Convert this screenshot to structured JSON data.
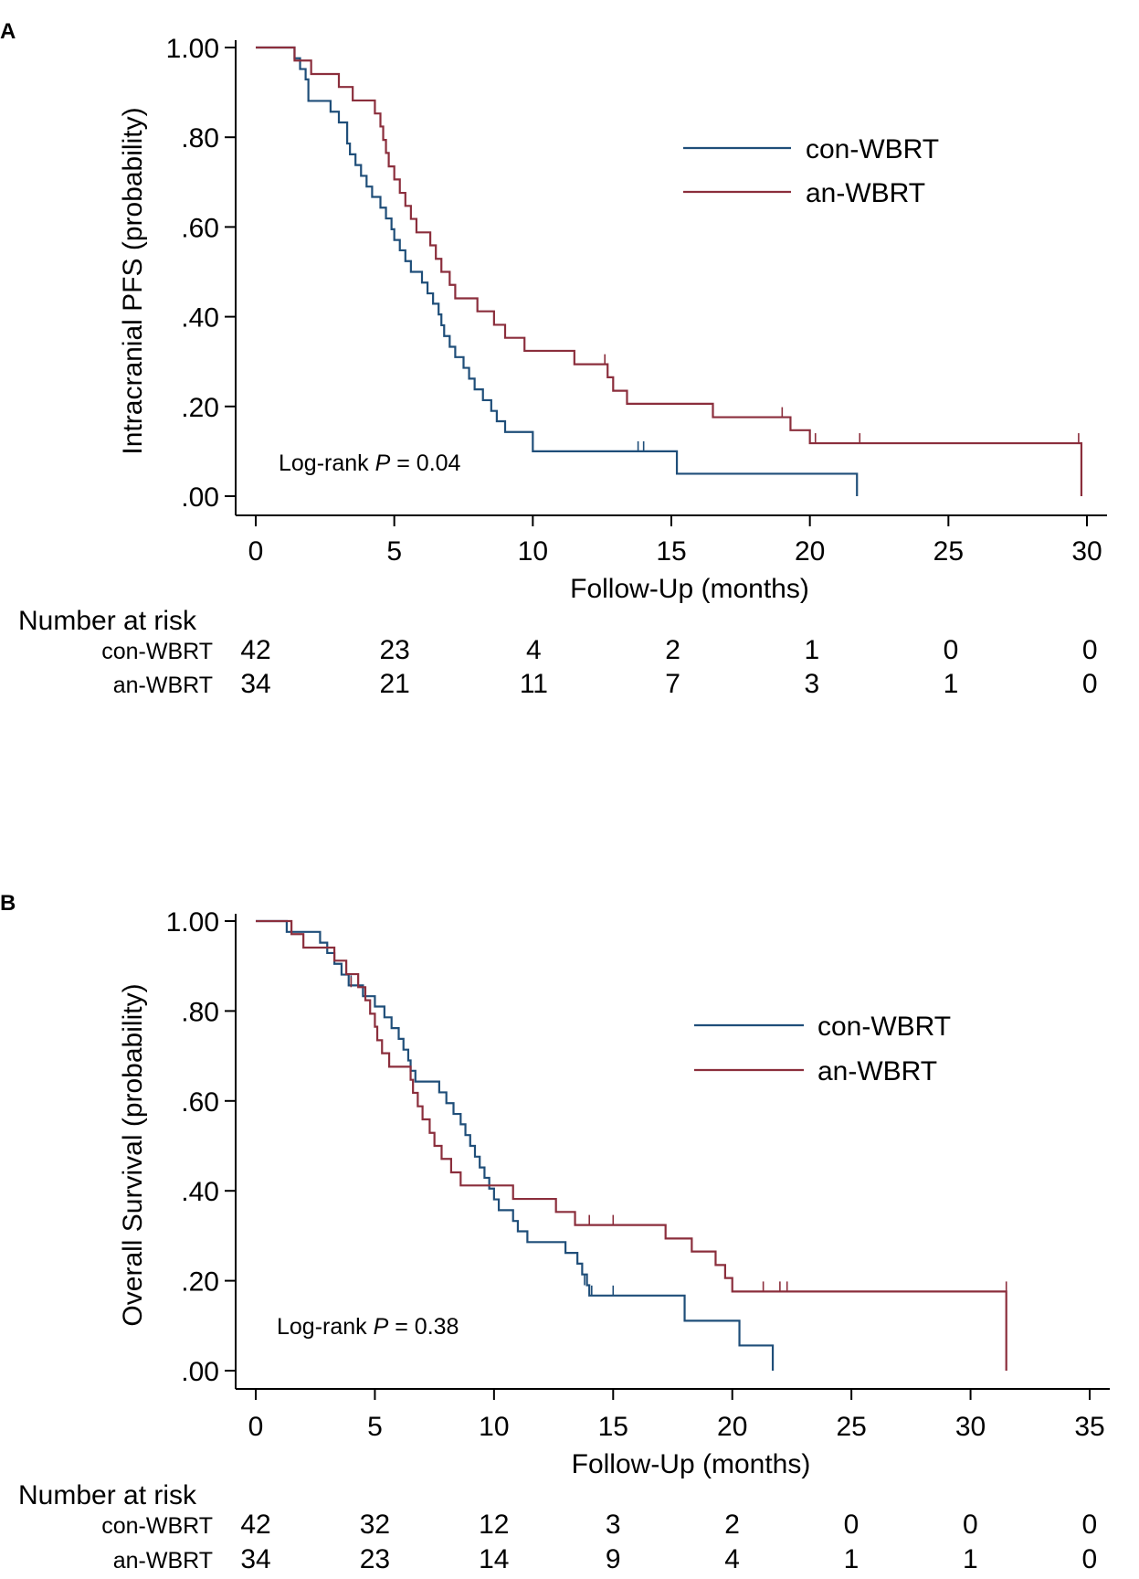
{
  "colors": {
    "con": "#1f4e79",
    "an": "#8b2e3c",
    "axis": "#000000"
  },
  "chart_data": [
    {
      "type": "line",
      "panel_label": "A",
      "title": "",
      "xlabel": "Follow-Up (months)",
      "ylabel": "Intracranial PFS (probability)",
      "xlim": [
        0,
        30
      ],
      "ylim": [
        0,
        1
      ],
      "x_ticks": [
        "0",
        "5",
        "10",
        "15",
        "20",
        "25",
        "30"
      ],
      "y_ticks": [
        ".00",
        ".20",
        ".40",
        ".60",
        ".80",
        "1.00"
      ],
      "legend": [
        "con-WBRT",
        "an-WBRT"
      ],
      "legend_position": "top-right",
      "annotation": {
        "prefix": "Log-rank ",
        "p_symbol": "P",
        "suffix": " = 0.04"
      },
      "series": [
        {
          "name": "con-WBRT",
          "color_key": "con",
          "steps": [
            [
              0,
              1.0
            ],
            [
              1.4,
              0.976
            ],
            [
              1.6,
              0.952
            ],
            [
              1.8,
              0.929
            ],
            [
              1.9,
              0.881
            ],
            [
              2.7,
              0.857
            ],
            [
              3.0,
              0.833
            ],
            [
              3.3,
              0.786
            ],
            [
              3.4,
              0.762
            ],
            [
              3.6,
              0.738
            ],
            [
              3.8,
              0.714
            ],
            [
              4.0,
              0.69
            ],
            [
              4.2,
              0.667
            ],
            [
              4.5,
              0.643
            ],
            [
              4.7,
              0.619
            ],
            [
              4.9,
              0.595
            ],
            [
              5.0,
              0.571
            ],
            [
              5.2,
              0.548
            ],
            [
              5.4,
              0.524
            ],
            [
              5.6,
              0.5
            ],
            [
              6.0,
              0.476
            ],
            [
              6.2,
              0.452
            ],
            [
              6.4,
              0.429
            ],
            [
              6.6,
              0.405
            ],
            [
              6.7,
              0.381
            ],
            [
              6.8,
              0.357
            ],
            [
              7.0,
              0.333
            ],
            [
              7.2,
              0.31
            ],
            [
              7.5,
              0.286
            ],
            [
              7.7,
              0.262
            ],
            [
              7.9,
              0.238
            ],
            [
              8.2,
              0.214
            ],
            [
              8.5,
              0.19
            ],
            [
              8.7,
              0.167
            ],
            [
              9.0,
              0.143
            ],
            [
              10.0,
              0.1
            ],
            [
              15.2,
              0.05
            ],
            [
              21.7,
              0.0
            ]
          ],
          "end_x": 21.7,
          "censored": [
            [
              13.8,
              0.1
            ],
            [
              14.0,
              0.1
            ]
          ]
        },
        {
          "name": "an-WBRT",
          "color_key": "an",
          "steps": [
            [
              0,
              1.0
            ],
            [
              1.4,
              0.971
            ],
            [
              2.0,
              0.941
            ],
            [
              3.0,
              0.912
            ],
            [
              3.5,
              0.882
            ],
            [
              4.3,
              0.853
            ],
            [
              4.5,
              0.824
            ],
            [
              4.6,
              0.794
            ],
            [
              4.7,
              0.765
            ],
            [
              4.8,
              0.735
            ],
            [
              5.0,
              0.706
            ],
            [
              5.2,
              0.676
            ],
            [
              5.4,
              0.647
            ],
            [
              5.6,
              0.618
            ],
            [
              5.8,
              0.588
            ],
            [
              6.3,
              0.559
            ],
            [
              6.5,
              0.529
            ],
            [
              6.7,
              0.5
            ],
            [
              7.0,
              0.471
            ],
            [
              7.2,
              0.441
            ],
            [
              8.0,
              0.412
            ],
            [
              8.6,
              0.382
            ],
            [
              9.0,
              0.353
            ],
            [
              9.7,
              0.324
            ],
            [
              11.5,
              0.294
            ],
            [
              12.7,
              0.265
            ],
            [
              12.9,
              0.235
            ],
            [
              13.4,
              0.206
            ],
            [
              16.5,
              0.176
            ],
            [
              19.3,
              0.147
            ],
            [
              20.0,
              0.118
            ],
            [
              29.8,
              0.0
            ]
          ],
          "end_x": 29.8,
          "censored": [
            [
              12.6,
              0.294
            ],
            [
              19.0,
              0.176
            ],
            [
              20.2,
              0.118
            ],
            [
              21.8,
              0.118
            ],
            [
              29.7,
              0.118
            ]
          ]
        }
      ],
      "risk_table": {
        "title": "Number at risk",
        "groups": [
          {
            "label": "con-WBRT",
            "values": [
              "42",
              "23",
              "4",
              "2",
              "1",
              "0",
              "0"
            ]
          },
          {
            "label": "an-WBRT",
            "values": [
              "34",
              "21",
              "11",
              "7",
              "3",
              "1",
              "0"
            ]
          }
        ]
      }
    },
    {
      "type": "line",
      "panel_label": "B",
      "title": "",
      "xlabel": "Follow-Up (months)",
      "ylabel": "Overall Survival (probability)",
      "xlim": [
        0,
        35
      ],
      "ylim": [
        0,
        1
      ],
      "x_ticks": [
        "0",
        "5",
        "10",
        "15",
        "20",
        "25",
        "30",
        "35"
      ],
      "y_ticks": [
        ".00",
        ".20",
        ".40",
        ".60",
        ".80",
        "1.00"
      ],
      "legend": [
        "con-WBRT",
        "an-WBRT"
      ],
      "legend_position": "top-right",
      "annotation": {
        "prefix": "Log-rank ",
        "p_symbol": "P",
        "suffix": " = 0.38"
      },
      "series": [
        {
          "name": "con-WBRT",
          "color_key": "con",
          "steps": [
            [
              0,
              1.0
            ],
            [
              1.3,
              0.976
            ],
            [
              2.7,
              0.952
            ],
            [
              3.0,
              0.929
            ],
            [
              3.3,
              0.905
            ],
            [
              3.6,
              0.881
            ],
            [
              3.9,
              0.857
            ],
            [
              4.5,
              0.833
            ],
            [
              5.0,
              0.81
            ],
            [
              5.4,
              0.786
            ],
            [
              5.7,
              0.762
            ],
            [
              6.0,
              0.738
            ],
            [
              6.2,
              0.714
            ],
            [
              6.4,
              0.69
            ],
            [
              6.5,
              0.667
            ],
            [
              6.7,
              0.643
            ],
            [
              7.7,
              0.619
            ],
            [
              8.0,
              0.595
            ],
            [
              8.3,
              0.571
            ],
            [
              8.6,
              0.548
            ],
            [
              8.8,
              0.524
            ],
            [
              9.0,
              0.5
            ],
            [
              9.2,
              0.476
            ],
            [
              9.4,
              0.452
            ],
            [
              9.6,
              0.429
            ],
            [
              9.8,
              0.405
            ],
            [
              10.0,
              0.381
            ],
            [
              10.2,
              0.357
            ],
            [
              10.8,
              0.333
            ],
            [
              11.0,
              0.31
            ],
            [
              11.4,
              0.286
            ],
            [
              13.0,
              0.262
            ],
            [
              13.5,
              0.238
            ],
            [
              13.7,
              0.214
            ],
            [
              13.9,
              0.19
            ],
            [
              14.0,
              0.167
            ],
            [
              18.0,
              0.111
            ],
            [
              20.3,
              0.056
            ],
            [
              21.7,
              0.0
            ]
          ],
          "end_x": 21.7,
          "censored": [
            [
              4.0,
              0.857
            ],
            [
              4.3,
              0.857
            ],
            [
              6.0,
              0.738
            ],
            [
              9.0,
              0.5
            ],
            [
              13.8,
              0.19
            ],
            [
              14.1,
              0.167
            ],
            [
              15.0,
              0.167
            ]
          ]
        },
        {
          "name": "an-WBRT",
          "color_key": "an",
          "steps": [
            [
              0,
              1.0
            ],
            [
              1.5,
              0.971
            ],
            [
              2.0,
              0.941
            ],
            [
              3.3,
              0.912
            ],
            [
              3.8,
              0.882
            ],
            [
              4.3,
              0.853
            ],
            [
              4.6,
              0.824
            ],
            [
              4.8,
              0.794
            ],
            [
              5.0,
              0.765
            ],
            [
              5.1,
              0.735
            ],
            [
              5.3,
              0.706
            ],
            [
              5.6,
              0.676
            ],
            [
              6.5,
              0.647
            ],
            [
              6.6,
              0.618
            ],
            [
              6.8,
              0.588
            ],
            [
              7.0,
              0.559
            ],
            [
              7.3,
              0.529
            ],
            [
              7.5,
              0.5
            ],
            [
              7.8,
              0.471
            ],
            [
              8.2,
              0.441
            ],
            [
              8.6,
              0.412
            ],
            [
              10.8,
              0.382
            ],
            [
              12.6,
              0.353
            ],
            [
              13.4,
              0.324
            ],
            [
              17.2,
              0.294
            ],
            [
              18.3,
              0.265
            ],
            [
              19.3,
              0.235
            ],
            [
              19.7,
              0.206
            ],
            [
              20.0,
              0.176
            ],
            [
              31.5,
              0.0
            ]
          ],
          "end_x": 31.5,
          "censored": [
            [
              4.0,
              0.853
            ],
            [
              14.0,
              0.324
            ],
            [
              15.0,
              0.324
            ],
            [
              19.3,
              0.235
            ],
            [
              21.3,
              0.176
            ],
            [
              22.0,
              0.176
            ],
            [
              22.3,
              0.176
            ],
            [
              31.5,
              0.176
            ]
          ]
        }
      ],
      "risk_table": {
        "title": "Number at risk",
        "groups": [
          {
            "label": "con-WBRT",
            "values": [
              "42",
              "32",
              "12",
              "3",
              "2",
              "0",
              "0",
              "0"
            ]
          },
          {
            "label": "an-WBRT",
            "values": [
              "34",
              "23",
              "14",
              "9",
              "4",
              "1",
              "1",
              "0"
            ]
          }
        ]
      }
    }
  ]
}
